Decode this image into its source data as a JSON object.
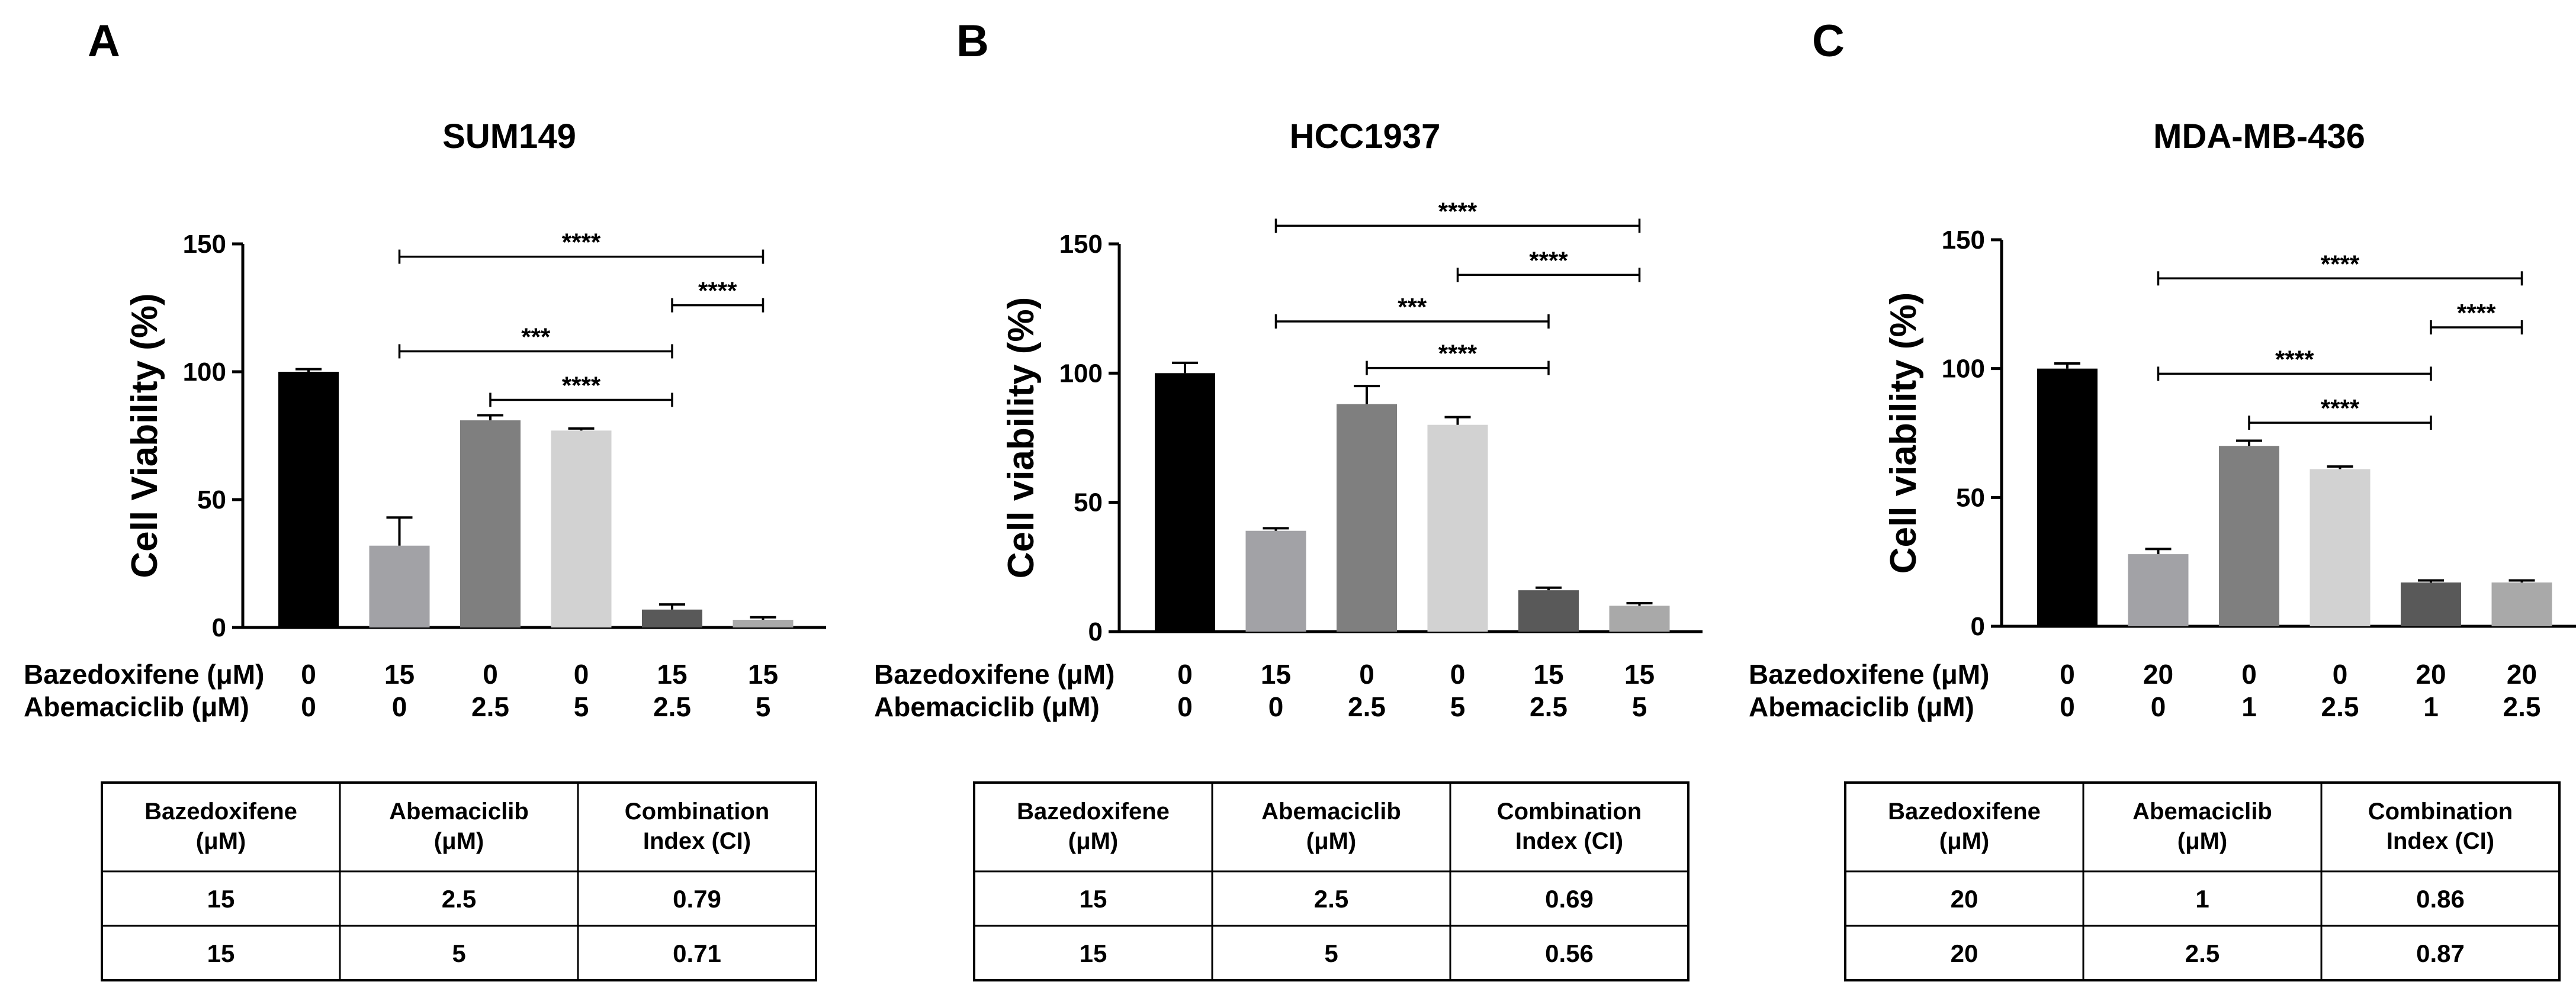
{
  "panels": [
    {
      "letter": "A",
      "title": "SUM149",
      "ylabel": "Cell Viability (%)",
      "chart_data": {
        "type": "bar",
        "title": "SUM149",
        "ylabel": "Cell Viability (%)",
        "ylim": [
          0,
          150
        ],
        "yticks": [
          0,
          50,
          100,
          150
        ],
        "row_labels": [
          "Bazedoxifene (μM)",
          "Abemaciclib  (μM)"
        ],
        "categories": [
          {
            "bazedoxifene": "0",
            "abemaciclib": "0"
          },
          {
            "bazedoxifene": "15",
            "abemaciclib": "0"
          },
          {
            "bazedoxifene": "0",
            "abemaciclib": "2.5"
          },
          {
            "bazedoxifene": "0",
            "abemaciclib": "5"
          },
          {
            "bazedoxifene": "15",
            "abemaciclib": "2.5"
          },
          {
            "bazedoxifene": "15",
            "abemaciclib": "5"
          }
        ],
        "values": [
          100,
          32,
          81,
          77,
          7,
          3
        ],
        "errors": [
          1,
          11,
          2,
          0.8,
          2,
          1
        ],
        "colors": [
          "#000000",
          "#a2a2a6",
          "#7f7f7f",
          "#d2d2d2",
          "#595959",
          "#a9a9a9"
        ],
        "significance": [
          {
            "from": 1,
            "to": 5,
            "y": 145,
            "label": "****"
          },
          {
            "from": 4,
            "to": 5,
            "y": 126,
            "label": "****"
          },
          {
            "from": 1,
            "to": 4,
            "y": 108,
            "label": "***"
          },
          {
            "from": 2,
            "to": 4,
            "y": 89,
            "label": "****"
          }
        ]
      },
      "table": {
        "headers": [
          [
            "Bazedoxifene",
            "(μM)"
          ],
          [
            "Abemaciclib",
            "(μM)"
          ],
          [
            "Combination",
            "Index (CI)"
          ]
        ],
        "rows": [
          [
            "15",
            "2.5",
            "0.79"
          ],
          [
            "15",
            "5",
            "0.71"
          ]
        ]
      }
    },
    {
      "letter": "B",
      "title": "HCC1937",
      "ylabel": "Cell viability (%)",
      "chart_data": {
        "type": "bar",
        "title": "HCC1937",
        "ylabel": "Cell viability (%)",
        "ylim": [
          0,
          150
        ],
        "yticks": [
          0,
          50,
          100,
          150
        ],
        "row_labels": [
          "Bazedoxifene (μM)",
          "Abemaciclib  (μM)"
        ],
        "categories": [
          {
            "bazedoxifene": "0",
            "abemaciclib": "0"
          },
          {
            "bazedoxifene": "15",
            "abemaciclib": "0"
          },
          {
            "bazedoxifene": "0",
            "abemaciclib": "2.5"
          },
          {
            "bazedoxifene": "0",
            "abemaciclib": "5"
          },
          {
            "bazedoxifene": "15",
            "abemaciclib": "2.5"
          },
          {
            "bazedoxifene": "15",
            "abemaciclib": "5"
          }
        ],
        "values": [
          100,
          39,
          88,
          80,
          16,
          10
        ],
        "errors": [
          4,
          1,
          7,
          3,
          1,
          1
        ],
        "colors": [
          "#000000",
          "#a2a2a6",
          "#7f7f7f",
          "#d2d2d2",
          "#595959",
          "#a9a9a9"
        ],
        "significance": [
          {
            "from": 1,
            "to": 5,
            "y": 157,
            "label": "****"
          },
          {
            "from": 3,
            "to": 5,
            "y": 138,
            "label": "****"
          },
          {
            "from": 1,
            "to": 4,
            "y": 120,
            "label": "***"
          },
          {
            "from": 2,
            "to": 4,
            "y": 102,
            "label": "****"
          }
        ]
      },
      "table": {
        "headers": [
          [
            "Bazedoxifene",
            "(μM)"
          ],
          [
            "Abemaciclib",
            "(μM)"
          ],
          [
            "Combination",
            "Index (CI)"
          ]
        ],
        "rows": [
          [
            "15",
            "2.5",
            "0.69"
          ],
          [
            "15",
            "5",
            "0.56"
          ]
        ]
      }
    },
    {
      "letter": "C",
      "title": "MDA-MB-436",
      "ylabel": "Cell viability (%)",
      "chart_data": {
        "type": "bar",
        "title": "MDA-MB-436",
        "ylabel": "Cell viability (%)",
        "ylim": [
          0,
          150
        ],
        "yticks": [
          0,
          50,
          100,
          150
        ],
        "row_labels": [
          "Bazedoxifene (μM)",
          "Abemaciclib  (μM)"
        ],
        "categories": [
          {
            "bazedoxifene": "0",
            "abemaciclib": "0"
          },
          {
            "bazedoxifene": "20",
            "abemaciclib": "0"
          },
          {
            "bazedoxifene": "0",
            "abemaciclib": "1"
          },
          {
            "bazedoxifene": "0",
            "abemaciclib": "2.5"
          },
          {
            "bazedoxifene": "20",
            "abemaciclib": "1"
          },
          {
            "bazedoxifene": "20",
            "abemaciclib": "2.5"
          }
        ],
        "values": [
          100,
          28,
          70,
          61,
          17,
          17
        ],
        "errors": [
          2,
          2,
          2,
          1,
          0.8,
          0.8
        ],
        "colors": [
          "#000000",
          "#a2a2a6",
          "#7f7f7f",
          "#d2d2d2",
          "#595959",
          "#a9a9a9"
        ],
        "significance": [
          {
            "from": 1,
            "to": 5,
            "y": 135,
            "label": "****"
          },
          {
            "from": 4,
            "to": 5,
            "y": 116,
            "label": "****"
          },
          {
            "from": 1,
            "to": 4,
            "y": 98,
            "label": "****"
          },
          {
            "from": 2,
            "to": 4,
            "y": 79,
            "label": "****"
          }
        ]
      },
      "table": {
        "headers": [
          [
            "Bazedoxifene",
            "(μM)"
          ],
          [
            "Abemaciclib",
            "(μM)"
          ],
          [
            "Combination",
            "Index (CI)"
          ]
        ],
        "rows": [
          [
            "20",
            "1",
            "0.86"
          ],
          [
            "20",
            "2.5",
            "0.87"
          ]
        ]
      }
    }
  ]
}
